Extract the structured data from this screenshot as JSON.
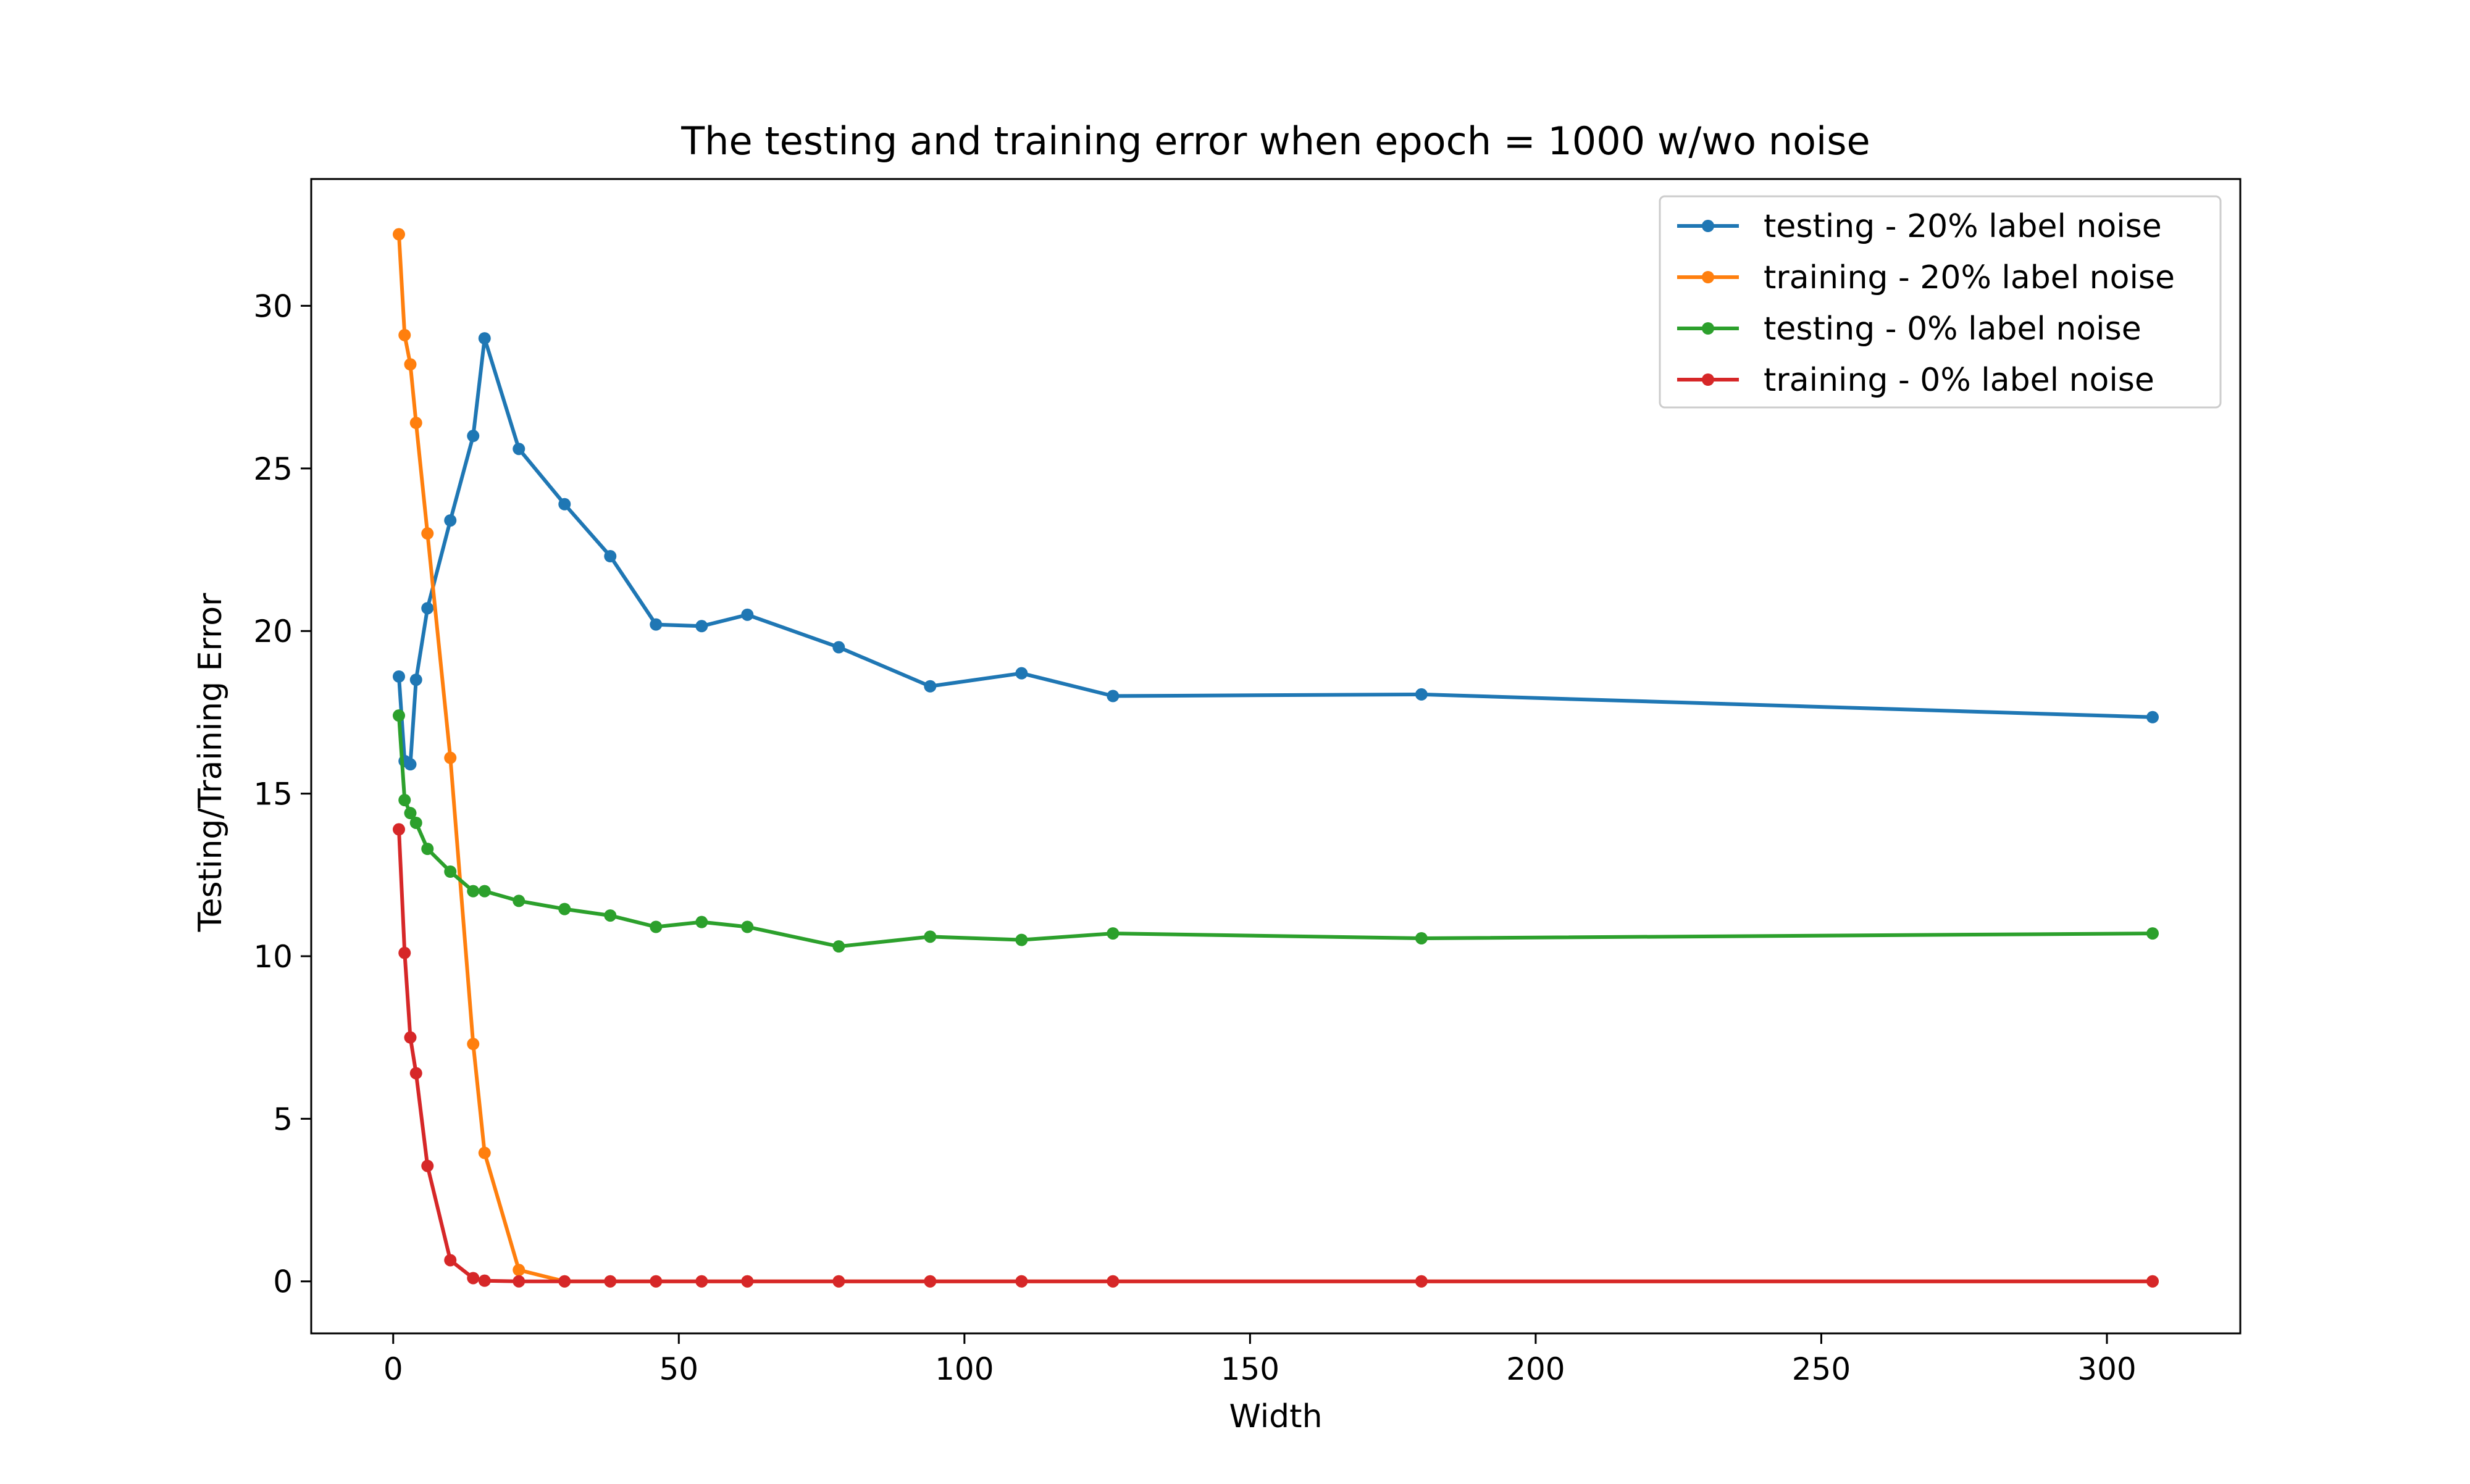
{
  "chart_data": {
    "type": "line",
    "title": "The testing and training error when epoch = 1000 w/wo noise",
    "xlabel": "Width",
    "ylabel": "Testing/Training Error",
    "xlim": [
      -14.35,
      323.35
    ],
    "ylim": [
      -1.6,
      33.9
    ],
    "xticks": [
      0,
      50,
      100,
      150,
      200,
      250,
      300
    ],
    "yticks": [
      0,
      5,
      10,
      15,
      20,
      25,
      30
    ],
    "grid": false,
    "legend_position": "top-right",
    "x": [
      1,
      2,
      3,
      4,
      6,
      10,
      14,
      16,
      22,
      30,
      38,
      46,
      54,
      62,
      78,
      94,
      110,
      126,
      180,
      308
    ],
    "series": [
      {
        "name": "testing - 20% label noise",
        "color": "#1f77b4",
        "values": [
          18.6,
          16.0,
          15.9,
          18.5,
          20.7,
          23.4,
          26.0,
          29.0,
          25.6,
          23.9,
          22.3,
          20.2,
          20.15,
          20.5,
          19.5,
          18.3,
          18.7,
          18.0,
          18.05,
          17.35
        ]
      },
      {
        "name": "training - 20% label noise",
        "color": "#ff7f0e",
        "values": [
          32.2,
          29.1,
          28.2,
          26.4,
          23.0,
          16.1,
          7.3,
          3.95,
          0.35,
          0.0,
          0.0,
          0.0,
          0.0,
          0.0,
          0.0,
          0.0,
          0.0,
          0.0,
          0.0,
          0.0
        ]
      },
      {
        "name": "testing - 0% label noise",
        "color": "#2ca02c",
        "values": [
          17.4,
          14.8,
          14.4,
          14.1,
          13.3,
          12.6,
          12.0,
          12.0,
          11.7,
          11.45,
          11.25,
          10.9,
          11.05,
          10.9,
          10.3,
          10.6,
          10.5,
          10.7,
          10.55,
          10.7
        ]
      },
      {
        "name": "training - 0% label noise",
        "color": "#d62728",
        "values": [
          13.9,
          10.1,
          7.5,
          6.4,
          3.55,
          0.65,
          0.1,
          0.02,
          0.0,
          0.0,
          0.0,
          0.0,
          0.0,
          0.0,
          0.0,
          0.0,
          0.0,
          0.0,
          0.0,
          0.0
        ]
      }
    ]
  }
}
